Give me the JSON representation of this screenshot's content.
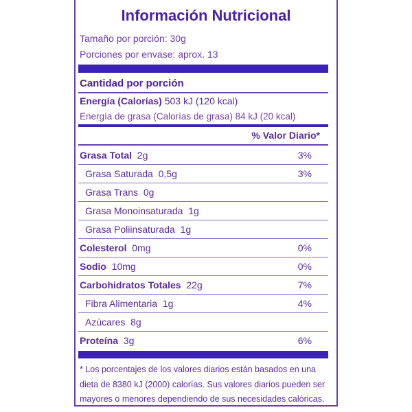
{
  "title": "Información Nutricional",
  "serving_size": "Tamaño por porción: 30g",
  "servings": "Porciones por envase: aprox. 13",
  "amount_header": "Cantidad por porción",
  "energy_label": "Energía (Calorías)",
  "energy_value": "503 kJ (120 kcal)",
  "fat_energy": "Energía de grasa (Calorías de grasa) 84 kJ (20 kcal)",
  "dv_header": "% Valor Diario*",
  "rows": [
    {
      "label": "Grasa Total",
      "amount": "2g",
      "pct": "3%",
      "bold": true,
      "indent": false
    },
    {
      "label": "Grasa Saturada",
      "amount": "0,5g",
      "pct": "3%",
      "bold": false,
      "indent": true
    },
    {
      "label": "Grasa Trans",
      "amount": "0g",
      "pct": "",
      "bold": false,
      "indent": true
    },
    {
      "label": "Grasa Monoinsaturada",
      "amount": "1g",
      "pct": "",
      "bold": false,
      "indent": true
    },
    {
      "label": "Grasa Poliinsaturada",
      "amount": "1g",
      "pct": "",
      "bold": false,
      "indent": true
    },
    {
      "label": "Colesterol",
      "amount": "0mg",
      "pct": "0%",
      "bold": true,
      "indent": false
    },
    {
      "label": "Sodio",
      "amount": "10mg",
      "pct": "0%",
      "bold": true,
      "indent": false
    },
    {
      "label": "Carbohidratos Totales",
      "amount": "22g",
      "pct": "7%",
      "bold": true,
      "indent": false
    },
    {
      "label": "Fibra Alimentaria",
      "amount": "1g",
      "pct": "4%",
      "bold": false,
      "indent": true
    },
    {
      "label": "Azúcares",
      "amount": "8g",
      "pct": "",
      "bold": false,
      "indent": true
    },
    {
      "label": "Proteína",
      "amount": "3g",
      "pct": "6%",
      "bold": true,
      "indent": false
    }
  ],
  "footnote": "* Los porcentajes de los valores diarios están basados en una dieta de 8380 kJ (2000) calorías. Sus valores diarios pueden ser mayores o menores dependiendo de sus necesidades calóricas.",
  "colors": {
    "text": "#5a2a9c",
    "bar": "#3b22b5"
  }
}
